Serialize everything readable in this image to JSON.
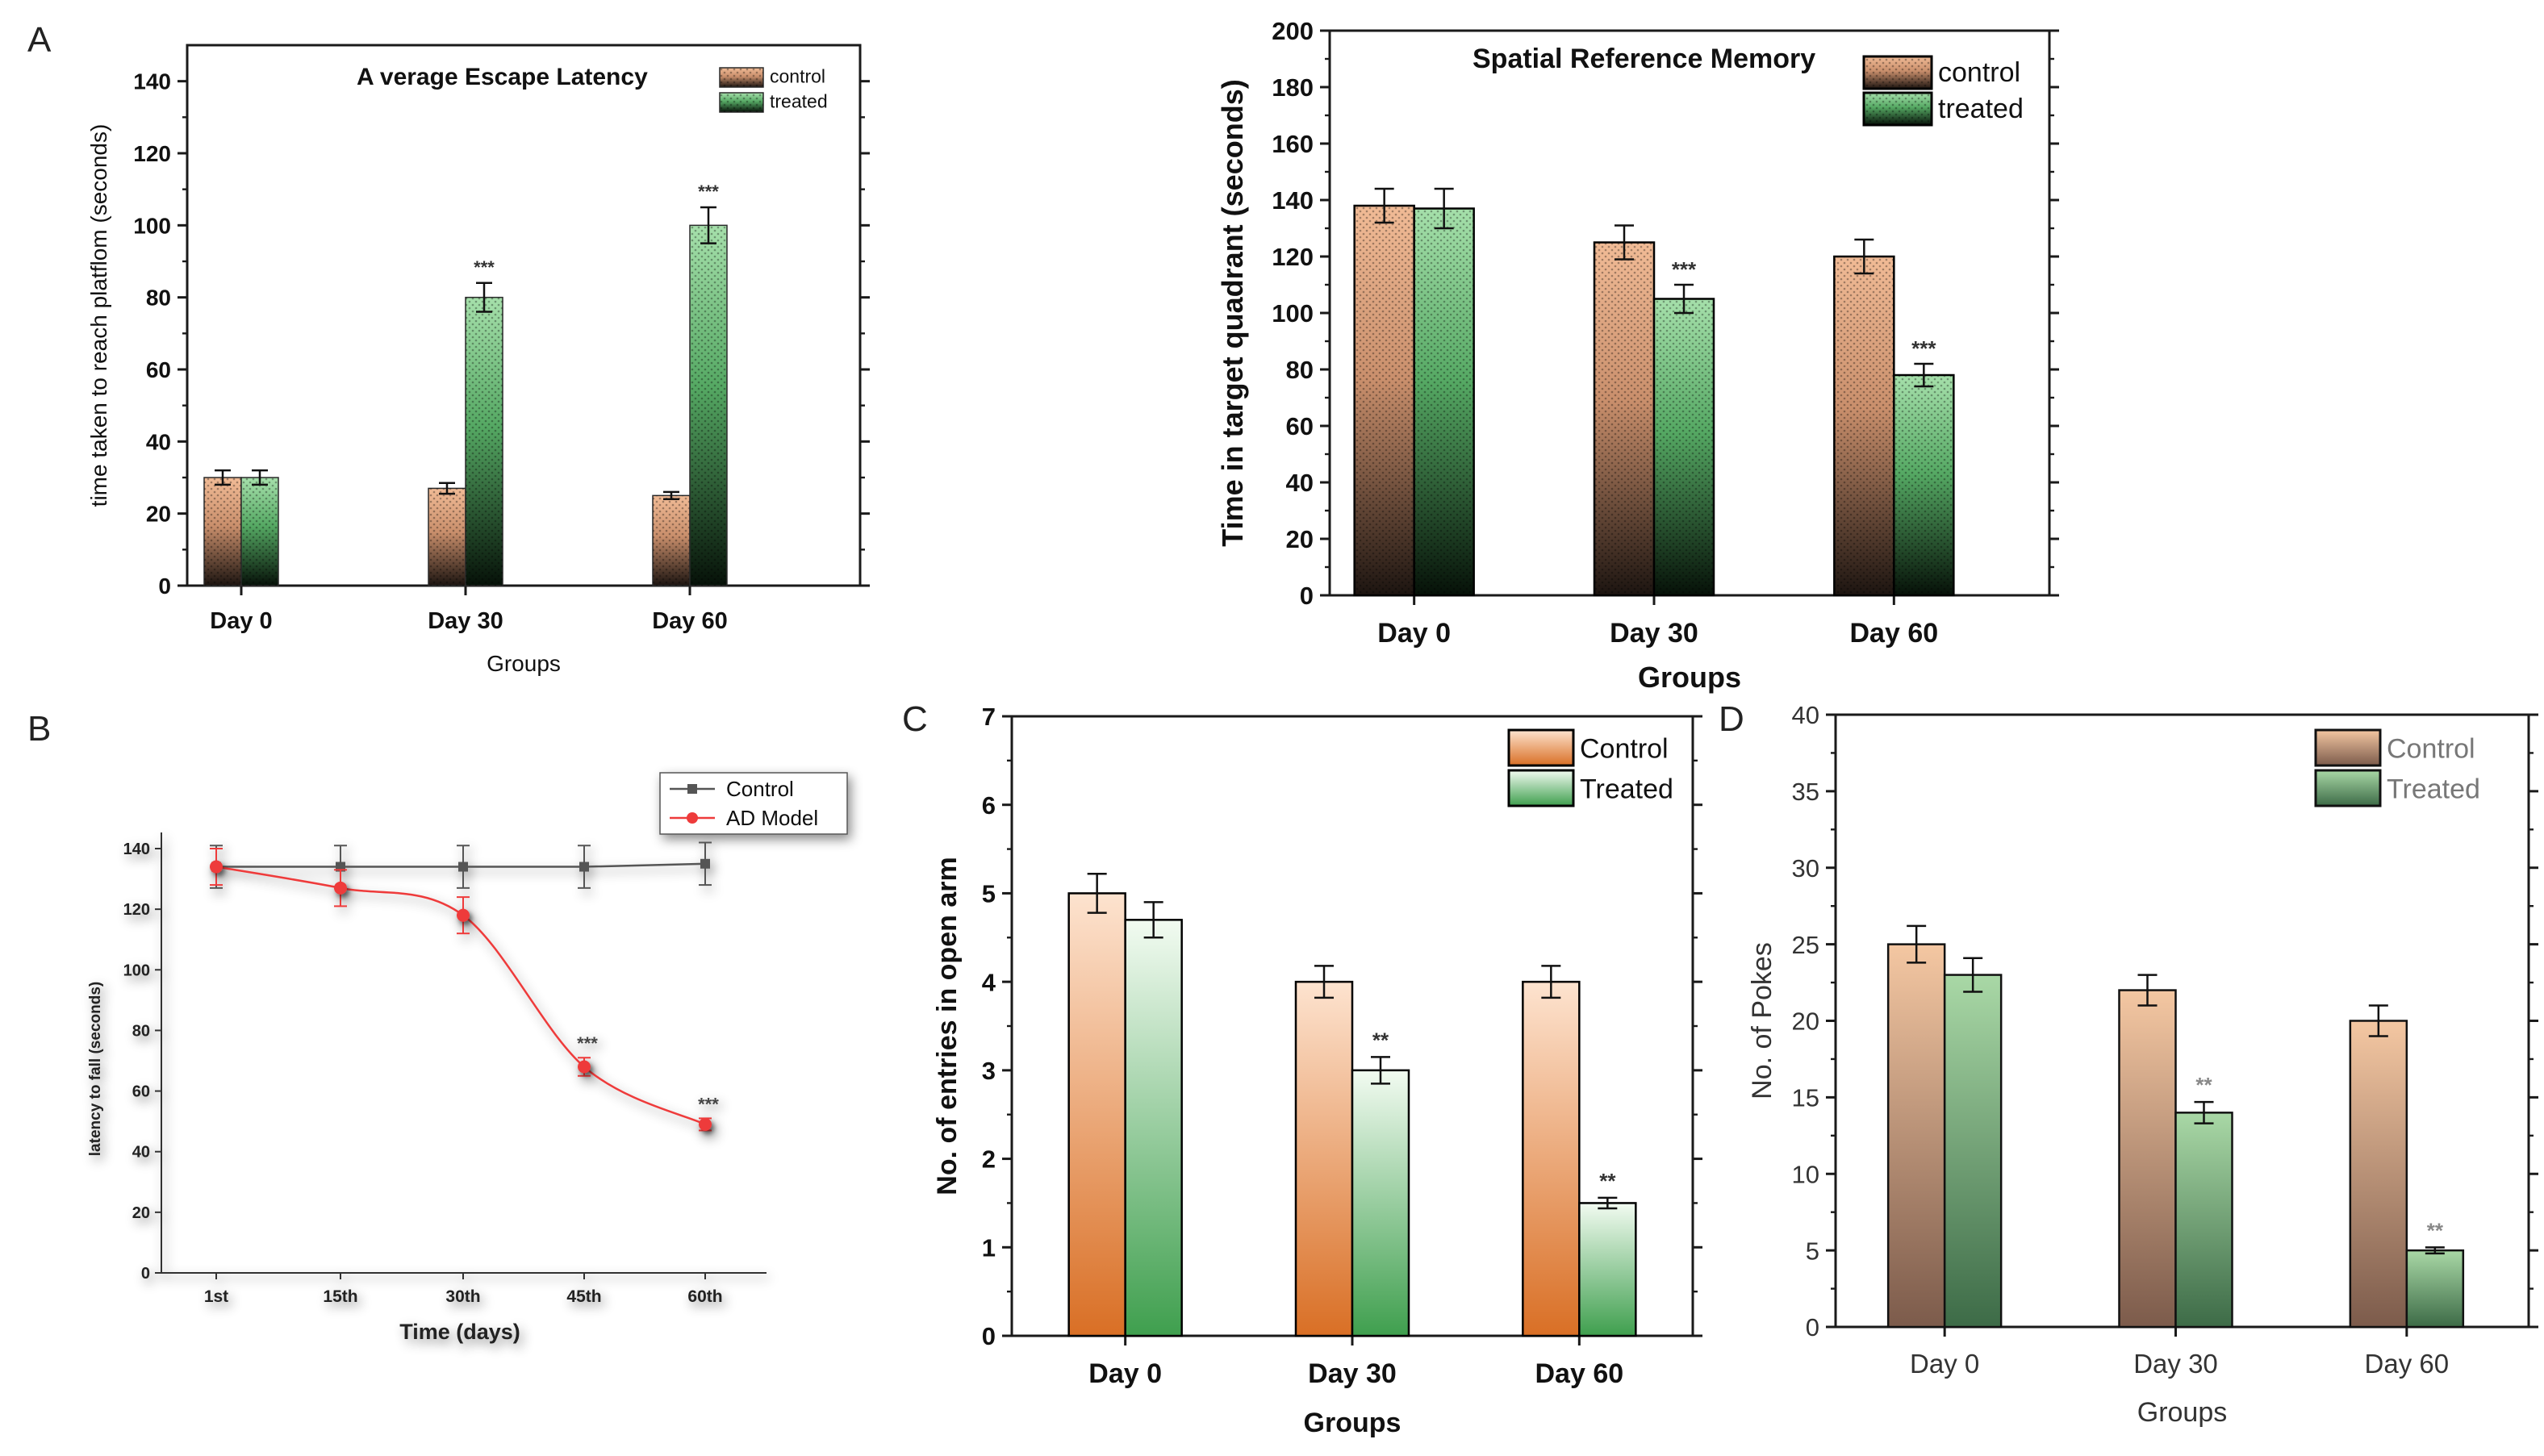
{
  "panel_letters": [
    "A",
    "B",
    "C",
    "D"
  ],
  "colors": {
    "axis": "#1a1a1a",
    "control_top": "#f1bb96",
    "control_mid": "#c98f6c",
    "control_bottom": "#1c1410",
    "treated_top": "#a6e0ab",
    "treated_mid": "#55a863",
    "treated_bottom": "#061108",
    "c_control_top": "#fde3cf",
    "c_control_bottom": "#d96f25",
    "c_treated_top": "#f2fbf1",
    "c_treated_bottom": "#3f9f4e",
    "d_control_top": "#f4c7a2",
    "d_control_bottom": "#7c5b4b",
    "d_treated_top": "#a9d8a6",
    "d_treated_bottom": "#3d6b47",
    "line_control": "#555555",
    "line_ad": "#ee3a3a",
    "sig_text": "#333333",
    "sig_text_light": "#888888"
  },
  "chart_data": [
    {
      "id": "A1",
      "type": "bar",
      "title": "A verage Escape Latency",
      "xlabel": "Groups",
      "ylabel": "time taken to reach platflom (seconds)",
      "categories": [
        "Day 0",
        "Day 30",
        "Day 60"
      ],
      "ylim": [
        0,
        150
      ],
      "yticks": [
        0,
        20,
        40,
        60,
        80,
        100,
        120,
        140
      ],
      "series": [
        {
          "name": "control",
          "values": [
            30,
            27,
            25
          ],
          "errors": [
            2,
            1.5,
            1
          ]
        },
        {
          "name": "treated",
          "values": [
            30,
            80,
            100
          ],
          "errors": [
            2,
            4,
            5
          ]
        }
      ],
      "annotations": [
        {
          "series": 1,
          "index": 1,
          "text": "***"
        },
        {
          "series": 1,
          "index": 2,
          "text": "***"
        }
      ]
    },
    {
      "id": "A2",
      "type": "bar",
      "title": "Spatial Reference Memory",
      "xlabel": "Groups",
      "ylabel": "Time in target quadrant (seconds)",
      "categories": [
        "Day 0",
        "Day 30",
        "Day 60"
      ],
      "ylim": [
        0,
        200
      ],
      "yticks": [
        0,
        20,
        40,
        60,
        80,
        100,
        120,
        140,
        160,
        180,
        200
      ],
      "series": [
        {
          "name": "control",
          "values": [
            138,
            125,
            120
          ],
          "errors": [
            6,
            6,
            6
          ]
        },
        {
          "name": "treated",
          "values": [
            137,
            105,
            78
          ],
          "errors": [
            7,
            5,
            4
          ]
        }
      ],
      "annotations": [
        {
          "series": 1,
          "index": 1,
          "text": "***"
        },
        {
          "series": 1,
          "index": 2,
          "text": "***"
        }
      ]
    },
    {
      "id": "B",
      "type": "line",
      "title": "",
      "xlabel": "Time (days)",
      "ylabel": "latency to fall (seconds)",
      "categories": [
        "1st",
        "15th",
        "30th",
        "45th",
        "60th"
      ],
      "ylim": [
        0,
        140
      ],
      "yticks": [
        0,
        20,
        40,
        60,
        80,
        100,
        120,
        140
      ],
      "series": [
        {
          "name": "Control",
          "values": [
            134,
            134,
            134,
            134,
            135
          ],
          "errors": [
            7,
            7,
            7,
            7,
            7
          ]
        },
        {
          "name": "AD Model",
          "values": [
            134,
            127,
            118,
            68,
            49
          ],
          "errors": [
            6,
            6,
            6,
            3,
            2
          ]
        }
      ],
      "annotations": [
        {
          "series": 1,
          "index": 3,
          "text": "***"
        },
        {
          "series": 1,
          "index": 4,
          "text": "***"
        }
      ]
    },
    {
      "id": "C",
      "type": "bar",
      "title": "",
      "xlabel": "Groups",
      "ylabel": "No. of entries in open arm",
      "categories": [
        "Day 0",
        "Day 30",
        "Day 60"
      ],
      "ylim": [
        0,
        7
      ],
      "yticks": [
        0,
        1,
        2,
        3,
        4,
        5,
        6,
        7
      ],
      "series": [
        {
          "name": "Control",
          "values": [
            5,
            4,
            4
          ],
          "errors": [
            0.22,
            0.18,
            0.18
          ]
        },
        {
          "name": "Treated",
          "values": [
            4.7,
            3,
            1.5
          ],
          "errors": [
            0.2,
            0.15,
            0.06
          ]
        }
      ],
      "annotations": [
        {
          "series": 1,
          "index": 1,
          "text": "**"
        },
        {
          "series": 1,
          "index": 2,
          "text": "**"
        }
      ]
    },
    {
      "id": "D",
      "type": "bar",
      "title": "",
      "xlabel": "Groups",
      "ylabel": "No. of Pokes",
      "categories": [
        "Day 0",
        "Day 30",
        "Day 60"
      ],
      "ylim": [
        0,
        40
      ],
      "yticks": [
        0,
        5,
        10,
        15,
        20,
        25,
        30,
        35,
        40
      ],
      "series": [
        {
          "name": "Control",
          "values": [
            25,
            22,
            20
          ],
          "errors": [
            1.2,
            1,
            1
          ]
        },
        {
          "name": "Treated",
          "values": [
            23,
            14,
            5
          ],
          "errors": [
            1.1,
            0.7,
            0.2
          ]
        }
      ],
      "annotations": [
        {
          "series": 1,
          "index": 1,
          "text": "**"
        },
        {
          "series": 1,
          "index": 2,
          "text": "**"
        }
      ]
    }
  ]
}
